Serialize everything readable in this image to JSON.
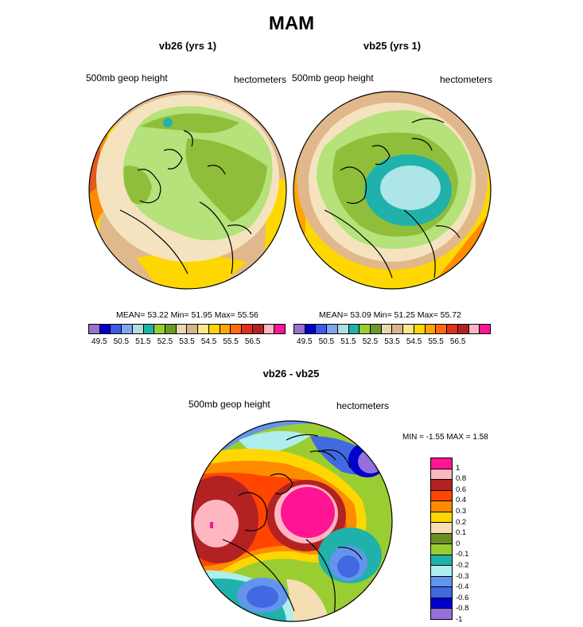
{
  "figure": {
    "title": "MAM"
  },
  "panels": [
    {
      "title": "vb26 (yrs 1)",
      "field_label": "500mb geop height",
      "units_label": "hectometers",
      "stats_text": "MEAN=  53.22  Min=  51.95  Max=  55.56"
    },
    {
      "title": "vb25 (yrs 1)",
      "field_label": "500mb geop height",
      "units_label": "hectometers",
      "stats_text": "MEAN=  53.09  Min=  51.25  Max=  55.72"
    }
  ],
  "diff_panel": {
    "title": "vb26 - vb25",
    "field_label": "500mb geop height",
    "units_label": "hectometers",
    "stats_text": "MIN =  -1.55 MAX =   1.58"
  },
  "abs_colorbar": {
    "colors": [
      "#9b6fd1",
      "#0000c8",
      "#3b5ce8",
      "#7da7ef",
      "#b0dfe0",
      "#20b2aa",
      "#9acd32",
      "#6b9a28",
      "#e8d8b0",
      "#d9b48a",
      "#fbe68a",
      "#ffd700",
      "#ffa500",
      "#ff6a13",
      "#e0301e",
      "#b22222",
      "#ffb6c1",
      "#ff1493"
    ],
    "labels": [
      "49.5",
      "50.5",
      "51.5",
      "52.5",
      "53.5",
      "54.5",
      "55.5",
      "56.5"
    ]
  },
  "diff_colorbar": {
    "colors": [
      "#ff1493",
      "#ffb6c1",
      "#b22222",
      "#ff4500",
      "#ff8c00",
      "#ffd700",
      "#f5deb3",
      "#6b8e23",
      "#9acd32",
      "#20b2aa",
      "#afeeee",
      "#6495ed",
      "#4169e1",
      "#0000cd",
      "#9370db"
    ],
    "labels": [
      "1",
      "0.8",
      "0.6",
      "0.4",
      "0.3",
      "0.2",
      "0.1",
      "0",
      "-0.1",
      "-0.2",
      "-0.3",
      "-0.4",
      "-0.6",
      "-0.8",
      "-1"
    ]
  }
}
